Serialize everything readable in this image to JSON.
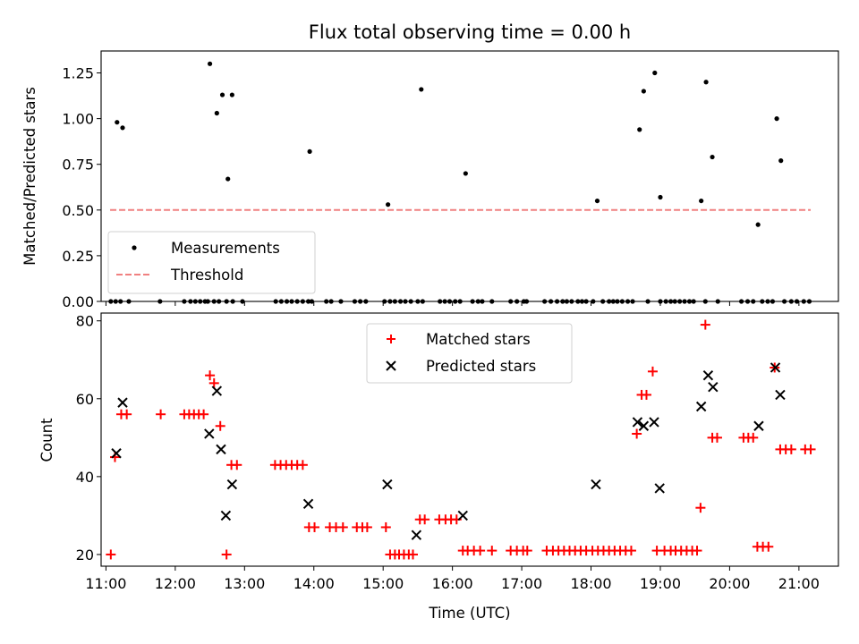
{
  "chart_data": [
    {
      "type": "scatter",
      "title": "Flux total observing time = 0.00 h",
      "xlabel": "",
      "ylabel": "Matched/Predicted stars",
      "xlim": [
        10.93,
        21.57
      ],
      "ylim": [
        0,
        1.37
      ],
      "yticks": [
        0,
        0.25,
        0.5,
        0.75,
        1.0,
        1.25
      ],
      "ytick_labels": [
        "0.00",
        "0.25",
        "0.50",
        "0.75",
        "1.00",
        "1.25"
      ],
      "xticks": [
        11,
        12,
        13,
        14,
        15,
        16,
        17,
        18,
        19,
        20,
        21
      ],
      "legend": {
        "position": "lower-left",
        "entries": [
          "Measurements",
          "Threshold"
        ]
      },
      "threshold": {
        "name": "Threshold",
        "value": 0.5,
        "x": [
          11.06,
          21.17
        ],
        "color": "#f08080"
      },
      "series": [
        {
          "name": "Measurements",
          "color": "#000000",
          "x": [
            11.07,
            11.14,
            11.21,
            11.33,
            11.78,
            12.13,
            12.22,
            12.29,
            12.36,
            12.43,
            12.47,
            12.56,
            12.63,
            12.74,
            12.83,
            12.97,
            13.45,
            13.53,
            13.61,
            13.68,
            13.76,
            13.84,
            13.92,
            13.97,
            14.18,
            14.25,
            14.39,
            14.59,
            14.67,
            14.75,
            15.02,
            15.1,
            15.17,
            15.25,
            15.32,
            15.4,
            15.5,
            15.57,
            15.82,
            15.89,
            15.96,
            16.04,
            16.11,
            16.29,
            16.37,
            16.43,
            16.57,
            16.84,
            16.93,
            17.03,
            17.07,
            17.33,
            17.42,
            17.51,
            17.59,
            17.65,
            17.72,
            17.81,
            17.87,
            17.93,
            18.03,
            18.17,
            18.26,
            18.32,
            18.38,
            18.45,
            18.53,
            18.6,
            18.82,
            19.0,
            19.08,
            19.15,
            19.21,
            19.28,
            19.35,
            19.42,
            19.48,
            19.65,
            19.83,
            20.17,
            20.26,
            20.34,
            20.47,
            20.55,
            20.62,
            20.79,
            20.89,
            20.97,
            21.07,
            21.15,
            11.16,
            11.24,
            12.5,
            12.6,
            12.68,
            12.76,
            12.82,
            13.94,
            15.07,
            15.55,
            16.19,
            18.09,
            18.7,
            18.76,
            18.92,
            19.0,
            19.59,
            19.66,
            19.75,
            20.41,
            20.68,
            20.74
          ],
          "y": [
            0,
            0,
            0,
            0,
            0,
            0,
            0,
            0,
            0,
            0,
            0,
            0,
            0,
            0,
            0,
            0,
            0,
            0,
            0,
            0,
            0,
            0,
            0,
            0,
            0,
            0,
            0,
            0,
            0,
            0,
            0,
            0,
            0,
            0,
            0,
            0,
            0,
            0,
            0,
            0,
            0,
            0,
            0,
            0,
            0,
            0,
            0,
            0,
            0,
            0,
            0,
            0,
            0,
            0,
            0,
            0,
            0,
            0,
            0,
            0,
            0,
            0,
            0,
            0,
            0,
            0,
            0,
            0,
            0,
            0,
            0,
            0,
            0,
            0,
            0,
            0,
            0,
            0,
            0,
            0,
            0,
            0,
            0,
            0,
            0,
            0,
            0,
            0,
            0,
            0,
            0.98,
            0.95,
            1.3,
            1.03,
            1.13,
            0.67,
            1.13,
            0.82,
            0.53,
            1.16,
            0.7,
            0.55,
            0.94,
            1.15,
            1.25,
            0.57,
            0.55,
            1.2,
            0.79,
            0.42,
            1.0,
            0.77
          ]
        }
      ]
    },
    {
      "type": "scatter",
      "title": "",
      "xlabel": "Time (UTC)",
      "ylabel": "Count",
      "xlim": [
        10.93,
        21.57
      ],
      "ylim": [
        17,
        82
      ],
      "yticks": [
        20,
        40,
        60,
        80
      ],
      "ytick_labels": [
        "20",
        "40",
        "60",
        "80"
      ],
      "xticks": [
        11,
        12,
        13,
        14,
        15,
        16,
        17,
        18,
        19,
        20,
        21
      ],
      "xtick_labels": [
        "11:00",
        "12:00",
        "13:00",
        "14:00",
        "15:00",
        "16:00",
        "17:00",
        "18:00",
        "19:00",
        "20:00",
        "21:00"
      ],
      "legend": {
        "position": "upper-center",
        "entries": [
          "Matched stars",
          "Predicted stars"
        ]
      },
      "series": [
        {
          "name": "Matched stars",
          "marker": "+",
          "color": "#ff0000",
          "points": [
            [
              11.07,
              20
            ],
            [
              11.13,
              45
            ],
            [
              11.22,
              56
            ],
            [
              11.3,
              56
            ],
            [
              11.79,
              56
            ],
            [
              12.13,
              56
            ],
            [
              12.2,
              56
            ],
            [
              12.27,
              56
            ],
            [
              12.34,
              56
            ],
            [
              12.41,
              56
            ],
            [
              12.5,
              66
            ],
            [
              12.56,
              64
            ],
            [
              12.65,
              53
            ],
            [
              12.74,
              20
            ],
            [
              12.81,
              43
            ],
            [
              12.89,
              43
            ],
            [
              13.44,
              43
            ],
            [
              13.52,
              43
            ],
            [
              13.6,
              43
            ],
            [
              13.68,
              43
            ],
            [
              13.76,
              43
            ],
            [
              13.84,
              43
            ],
            [
              13.93,
              27
            ],
            [
              14.01,
              27
            ],
            [
              14.23,
              27
            ],
            [
              14.32,
              27
            ],
            [
              14.42,
              27
            ],
            [
              14.62,
              27
            ],
            [
              14.7,
              27
            ],
            [
              14.77,
              27
            ],
            [
              15.04,
              27
            ],
            [
              15.1,
              20
            ],
            [
              15.17,
              20
            ],
            [
              15.23,
              20
            ],
            [
              15.3,
              20
            ],
            [
              15.37,
              20
            ],
            [
              15.43,
              20
            ],
            [
              15.53,
              29
            ],
            [
              15.6,
              29
            ],
            [
              15.81,
              29
            ],
            [
              15.9,
              29
            ],
            [
              15.98,
              29
            ],
            [
              16.06,
              29
            ],
            [
              16.15,
              21
            ],
            [
              16.22,
              21
            ],
            [
              16.31,
              21
            ],
            [
              16.4,
              21
            ],
            [
              16.57,
              21
            ],
            [
              16.84,
              21
            ],
            [
              16.93,
              21
            ],
            [
              17.02,
              21
            ],
            [
              17.08,
              21
            ],
            [
              17.36,
              21
            ],
            [
              17.45,
              21
            ],
            [
              17.53,
              21
            ],
            [
              17.61,
              21
            ],
            [
              17.69,
              21
            ],
            [
              17.77,
              21
            ],
            [
              17.85,
              21
            ],
            [
              17.93,
              21
            ],
            [
              18.02,
              21
            ],
            [
              18.1,
              21
            ],
            [
              18.18,
              21
            ],
            [
              18.26,
              21
            ],
            [
              18.34,
              21
            ],
            [
              18.42,
              21
            ],
            [
              18.5,
              21
            ],
            [
              18.58,
              21
            ],
            [
              18.66,
              51
            ],
            [
              18.73,
              61
            ],
            [
              18.8,
              61
            ],
            [
              18.89,
              67
            ],
            [
              18.95,
              21
            ],
            [
              19.06,
              21
            ],
            [
              19.15,
              21
            ],
            [
              19.22,
              21
            ],
            [
              19.3,
              21
            ],
            [
              19.38,
              21
            ],
            [
              19.46,
              21
            ],
            [
              19.53,
              21
            ],
            [
              19.58,
              32
            ],
            [
              19.65,
              79
            ],
            [
              19.75,
              50
            ],
            [
              19.82,
              50
            ],
            [
              20.2,
              50
            ],
            [
              20.27,
              50
            ],
            [
              20.34,
              50
            ],
            [
              20.4,
              22
            ],
            [
              20.48,
              22
            ],
            [
              20.56,
              22
            ],
            [
              20.65,
              68
            ],
            [
              20.73,
              47
            ],
            [
              20.81,
              47
            ],
            [
              20.89,
              47
            ],
            [
              21.09,
              47
            ],
            [
              21.17,
              47
            ]
          ]
        },
        {
          "name": "Predicted stars",
          "marker": "x",
          "color": "#000000",
          "points": [
            [
              11.15,
              46
            ],
            [
              11.24,
              59
            ],
            [
              12.49,
              51
            ],
            [
              12.6,
              62
            ],
            [
              12.66,
              47
            ],
            [
              12.73,
              30
            ],
            [
              12.82,
              38
            ],
            [
              13.92,
              33
            ],
            [
              15.06,
              38
            ],
            [
              15.48,
              25
            ],
            [
              16.15,
              30
            ],
            [
              18.07,
              38
            ],
            [
              18.67,
              54
            ],
            [
              18.76,
              53
            ],
            [
              18.91,
              54
            ],
            [
              18.99,
              37
            ],
            [
              19.59,
              58
            ],
            [
              19.69,
              66
            ],
            [
              19.76,
              63
            ],
            [
              20.42,
              53
            ],
            [
              20.66,
              68
            ],
            [
              20.73,
              61
            ]
          ]
        }
      ]
    }
  ]
}
